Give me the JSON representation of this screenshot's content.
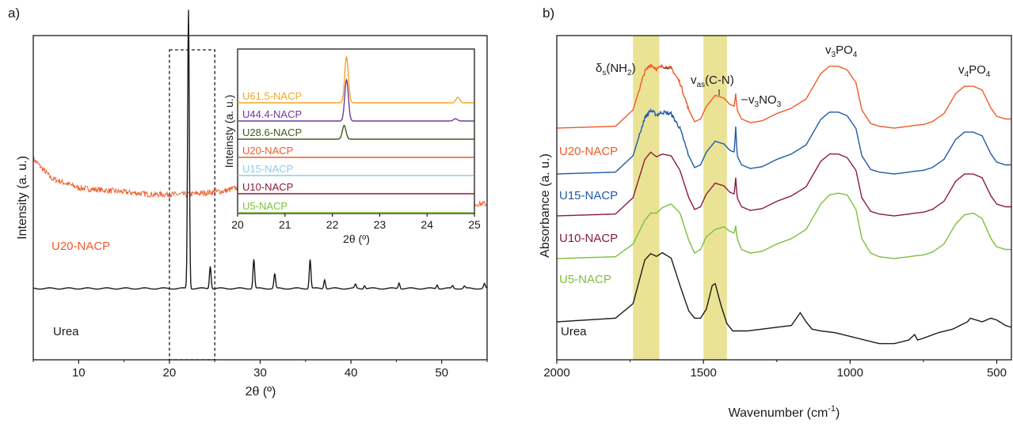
{
  "panels": {
    "a": {
      "label": "a)"
    },
    "b": {
      "label": "b)"
    }
  },
  "chart_data": [
    {
      "panel": "a",
      "type": "line",
      "xlabel": "2θ (º)",
      "ylabel": "Intensity (a. u.)",
      "xlim": [
        5,
        55
      ],
      "xticks": [
        "10",
        "20",
        "30",
        "40",
        "50"
      ],
      "legend": "inline labels on traces",
      "highlight": {
        "type": "dashed-box",
        "x_range": [
          20,
          25
        ]
      },
      "series": [
        {
          "name": "U20-NACP",
          "color": "#f05a28",
          "noisy": true,
          "x": [
            5,
            7,
            10,
            14,
            18,
            22,
            26,
            28,
            30,
            32,
            34,
            38,
            42,
            46,
            50,
            55
          ],
          "y": [
            0.62,
            0.56,
            0.53,
            0.52,
            0.51,
            0.51,
            0.52,
            0.535,
            0.545,
            0.535,
            0.52,
            0.505,
            0.495,
            0.49,
            0.485,
            0.48
          ]
        },
        {
          "name": "Urea",
          "color": "#1a1a1a",
          "noisy": false,
          "baseline": 0.22,
          "peaks": [
            [
              22.1,
              0.86
            ],
            [
              24.5,
              0.07
            ],
            [
              29.3,
              0.09
            ],
            [
              31.6,
              0.045
            ],
            [
              35.5,
              0.09
            ],
            [
              37.1,
              0.028
            ],
            [
              40.5,
              0.012
            ],
            [
              41.5,
              0.01
            ],
            [
              45.3,
              0.018
            ],
            [
              49.5,
              0.012
            ],
            [
              51.2,
              0.008
            ],
            [
              52.5,
              0.007
            ],
            [
              54.7,
              0.014
            ]
          ]
        }
      ]
    },
    {
      "panel": "a-inset",
      "type": "line",
      "xlabel": "2θ (º)",
      "ylabel": "Inteinsty (a. u.)",
      "xlim": [
        20,
        25
      ],
      "xticks": [
        "20",
        "21",
        "22",
        "23",
        "24",
        "25"
      ],
      "legend": "inline labels on traces",
      "series": [
        {
          "name": "U61.5-NACP",
          "color": "#f5a623",
          "peaks": [
            [
              22.3,
              1.0
            ],
            [
              24.65,
              0.12
            ]
          ]
        },
        {
          "name": "U44.4-NACP",
          "color": "#6a3d9a",
          "peaks": [
            [
              22.3,
              0.9
            ],
            [
              24.6,
              0.05
            ]
          ]
        },
        {
          "name": "U28.6-NACP",
          "color": "#3d5a1e",
          "peaks": [
            [
              22.25,
              0.3
            ]
          ]
        },
        {
          "name": "U20-NACP",
          "color": "#f05a28",
          "peaks": []
        },
        {
          "name": "U15-NACP",
          "color": "#8ecbe8",
          "peaks": []
        },
        {
          "name": "U10-NACP",
          "color": "#8b1a3c",
          "peaks": []
        },
        {
          "name": "U5-NACP",
          "color": "#7cbf3a",
          "peaks": []
        }
      ]
    },
    {
      "panel": "b",
      "type": "line",
      "xlabel": "Wavenumber (cm",
      "xlabel_sup": "-1",
      "xlabel_end": ")",
      "ylabel": "Absorbance (a. u.)",
      "xlim": [
        2000,
        450
      ],
      "xticks": [
        "2000",
        "1500",
        "1000",
        "500"
      ],
      "shaded_bands": [
        [
          1740,
          1650
        ],
        [
          1500,
          1420
        ]
      ],
      "band_color": "#e8e08a",
      "legend": "inline labels on traces",
      "annotations": [
        {
          "base": "δ",
          "sub": "s",
          "rest": "(NH",
          "sub2": "2",
          "end": ")"
        },
        {
          "base": "v",
          "sub": "as",
          "rest": "(C-N)"
        },
        {
          "base": "v",
          "sub": "3",
          "rest": "NO",
          "sub2": "3"
        },
        {
          "base": "v",
          "sub": "3",
          "rest": "PO",
          "sub2": "4"
        },
        {
          "base": "v",
          "sub": "4",
          "rest": "PO",
          "sub2": "4"
        }
      ],
      "series": [
        {
          "name": "U20-NACP",
          "color": "#f05a28",
          "noisy": true,
          "x": [
            2000,
            1800,
            1740,
            1700,
            1680,
            1660,
            1640,
            1610,
            1580,
            1550,
            1530,
            1510,
            1490,
            1460,
            1430,
            1410,
            1395,
            1390,
            1385,
            1370,
            1340,
            1300,
            1250,
            1200,
            1150,
            1100,
            1070,
            1040,
            1010,
            980,
            960,
            930,
            900,
            850,
            800,
            780,
            750,
            720,
            680,
            640,
            610,
            580,
            550,
            520,
            500,
            470,
            450
          ],
          "y": [
            0.2,
            0.22,
            0.4,
            0.82,
            0.9,
            0.85,
            0.88,
            0.86,
            0.7,
            0.4,
            0.27,
            0.3,
            0.44,
            0.56,
            0.53,
            0.46,
            0.44,
            0.58,
            0.4,
            0.3,
            0.26,
            0.28,
            0.36,
            0.42,
            0.52,
            0.8,
            0.88,
            0.88,
            0.84,
            0.7,
            0.4,
            0.25,
            0.22,
            0.2,
            0.22,
            0.23,
            0.24,
            0.27,
            0.36,
            0.58,
            0.66,
            0.66,
            0.62,
            0.42,
            0.33,
            0.3,
            0.3
          ]
        },
        {
          "name": "U15-NACP",
          "color": "#1f5aa6",
          "noisy": true,
          "x": [
            2000,
            1800,
            1740,
            1700,
            1680,
            1660,
            1640,
            1610,
            1580,
            1550,
            1530,
            1510,
            1490,
            1460,
            1430,
            1410,
            1395,
            1390,
            1385,
            1370,
            1340,
            1300,
            1250,
            1200,
            1150,
            1100,
            1070,
            1040,
            1010,
            980,
            960,
            930,
            900,
            850,
            800,
            780,
            750,
            720,
            680,
            640,
            610,
            580,
            550,
            520,
            500,
            470,
            450
          ],
          "y": [
            0.2,
            0.22,
            0.4,
            0.82,
            0.9,
            0.85,
            0.88,
            0.86,
            0.7,
            0.4,
            0.27,
            0.3,
            0.44,
            0.56,
            0.53,
            0.46,
            0.44,
            0.72,
            0.4,
            0.3,
            0.26,
            0.28,
            0.36,
            0.42,
            0.52,
            0.8,
            0.88,
            0.88,
            0.84,
            0.7,
            0.4,
            0.25,
            0.22,
            0.2,
            0.22,
            0.23,
            0.24,
            0.27,
            0.36,
            0.58,
            0.66,
            0.66,
            0.62,
            0.42,
            0.33,
            0.3,
            0.3
          ]
        },
        {
          "name": "U10-NACP",
          "color": "#8b1a3c",
          "noisy": false,
          "x": [
            2000,
            1800,
            1740,
            1700,
            1680,
            1660,
            1640,
            1610,
            1580,
            1550,
            1530,
            1510,
            1490,
            1460,
            1430,
            1410,
            1395,
            1390,
            1385,
            1370,
            1340,
            1300,
            1250,
            1200,
            1150,
            1100,
            1070,
            1040,
            1010,
            980,
            960,
            930,
            900,
            850,
            800,
            780,
            750,
            720,
            680,
            640,
            610,
            580,
            550,
            520,
            500,
            470,
            450
          ],
          "y": [
            0.2,
            0.22,
            0.4,
            0.82,
            0.9,
            0.85,
            0.88,
            0.86,
            0.7,
            0.4,
            0.27,
            0.3,
            0.44,
            0.56,
            0.53,
            0.46,
            0.44,
            0.62,
            0.4,
            0.3,
            0.26,
            0.28,
            0.36,
            0.42,
            0.52,
            0.8,
            0.88,
            0.88,
            0.84,
            0.7,
            0.4,
            0.25,
            0.22,
            0.2,
            0.22,
            0.23,
            0.24,
            0.27,
            0.36,
            0.58,
            0.66,
            0.66,
            0.62,
            0.42,
            0.33,
            0.3,
            0.3
          ]
        },
        {
          "name": "U5-NACP",
          "color": "#7cbf3a",
          "noisy": false,
          "x": [
            2000,
            1800,
            1740,
            1700,
            1680,
            1660,
            1640,
            1610,
            1580,
            1550,
            1530,
            1510,
            1490,
            1460,
            1430,
            1410,
            1395,
            1390,
            1385,
            1370,
            1340,
            1300,
            1250,
            1200,
            1150,
            1100,
            1070,
            1040,
            1010,
            980,
            960,
            930,
            900,
            850,
            800,
            780,
            750,
            720,
            680,
            640,
            610,
            580,
            550,
            520,
            500,
            470,
            450
          ],
          "y": [
            0.2,
            0.22,
            0.36,
            0.62,
            0.7,
            0.7,
            0.76,
            0.8,
            0.7,
            0.4,
            0.26,
            0.3,
            0.44,
            0.52,
            0.55,
            0.5,
            0.48,
            0.56,
            0.42,
            0.3,
            0.26,
            0.28,
            0.36,
            0.42,
            0.52,
            0.8,
            0.9,
            0.92,
            0.9,
            0.74,
            0.42,
            0.26,
            0.22,
            0.2,
            0.22,
            0.23,
            0.24,
            0.27,
            0.36,
            0.58,
            0.68,
            0.7,
            0.64,
            0.42,
            0.33,
            0.3,
            0.3
          ]
        },
        {
          "name": "Urea",
          "color": "#1a1a1a",
          "noisy": false,
          "x": [
            2000,
            1800,
            1740,
            1700,
            1680,
            1660,
            1640,
            1610,
            1580,
            1550,
            1530,
            1510,
            1490,
            1470,
            1460,
            1440,
            1420,
            1400,
            1350,
            1300,
            1250,
            1200,
            1170,
            1150,
            1130,
            1100,
            1050,
            1000,
            950,
            900,
            850,
            800,
            780,
            770,
            750,
            700,
            650,
            600,
            590,
            570,
            550,
            520,
            500,
            470,
            450
          ],
          "y": [
            0.2,
            0.24,
            0.4,
            0.88,
            0.95,
            0.92,
            0.96,
            0.9,
            0.6,
            0.32,
            0.24,
            0.24,
            0.34,
            0.6,
            0.62,
            0.38,
            0.18,
            0.1,
            0.1,
            0.12,
            0.14,
            0.16,
            0.3,
            0.2,
            0.12,
            0.1,
            0.08,
            0.04,
            0.0,
            -0.04,
            -0.04,
            0.0,
            0.06,
            0.0,
            0.02,
            0.08,
            0.12,
            0.2,
            0.24,
            0.22,
            0.2,
            0.24,
            0.22,
            0.16,
            0.14
          ]
        }
      ]
    }
  ]
}
